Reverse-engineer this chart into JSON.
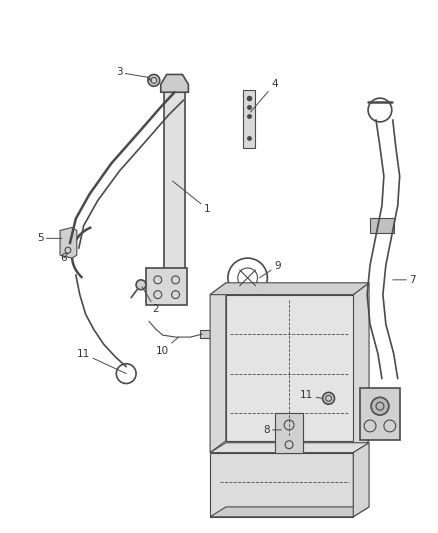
{
  "bg_color": "#ffffff",
  "line_color": "#4a4a4a",
  "label_color": "#333333",
  "fig_width": 4.38,
  "fig_height": 5.33,
  "dpi": 100
}
